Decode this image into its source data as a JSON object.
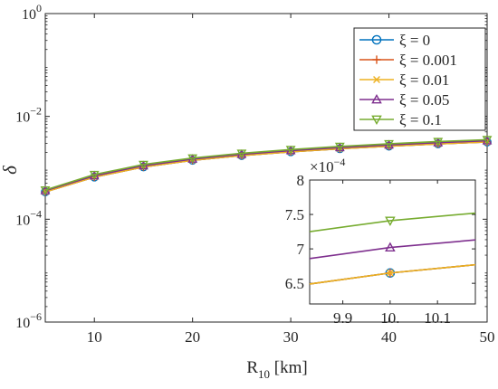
{
  "chart_data": [
    {
      "type": "line",
      "xlabel": "R",
      "xlabel_sub": "10",
      "xlabel_unit": " [km]",
      "ylabel": "δ",
      "xlim": [
        5,
        50
      ],
      "ylim": [
        1e-06,
        1
      ],
      "yscale": "log",
      "xticks": [
        10,
        20,
        30,
        40,
        50
      ],
      "yticks": [
        {
          "value": 1e-06,
          "base": "10",
          "exp": "−6"
        },
        {
          "value": 0.0001,
          "base": "10",
          "exp": "−4"
        },
        {
          "value": 0.01,
          "base": "10",
          "exp": "−2"
        },
        {
          "value": 1,
          "base": "10",
          "exp": "0"
        }
      ],
      "grid": false,
      "legend_position": "top-right",
      "x": [
        5,
        10,
        15,
        20,
        25,
        30,
        35,
        40,
        45,
        50
      ],
      "series": [
        {
          "name": "ξ = 0",
          "color": "#0072BD",
          "marker": "circle",
          "values": [
            0.00034,
            0.00066,
            0.00104,
            0.0014,
            0.00173,
            0.00205,
            0.00235,
            0.00264,
            0.00292,
            0.00318
          ]
        },
        {
          "name": "ξ = 0.001",
          "color": "#D95319",
          "marker": "plus",
          "values": [
            0.00034,
            0.00066,
            0.00104,
            0.0014,
            0.00173,
            0.00205,
            0.00235,
            0.00264,
            0.00292,
            0.00318
          ]
        },
        {
          "name": "ξ = 0.01",
          "color": "#EDB120",
          "marker": "x",
          "values": [
            0.00034,
            0.00066,
            0.00104,
            0.0014,
            0.00173,
            0.00205,
            0.00235,
            0.00264,
            0.00292,
            0.00318
          ]
        },
        {
          "name": "ξ = 0.05",
          "color": "#7E2F8E",
          "marker": "triangle-up",
          "values": [
            0.00036,
            0.0007,
            0.0011,
            0.00148,
            0.00183,
            0.00216,
            0.00248,
            0.00279,
            0.00308,
            0.00336
          ]
        },
        {
          "name": "ξ = 0.1",
          "color": "#77AC30",
          "marker": "triangle-down",
          "values": [
            0.00037,
            0.00074,
            0.00116,
            0.00155,
            0.00192,
            0.00227,
            0.00261,
            0.00293,
            0.00324,
            0.00353
          ]
        }
      ]
    },
    {
      "type": "line",
      "role": "inset",
      "xlim": [
        9.83,
        10.18
      ],
      "ylim": [
        6.2,
        8.0
      ],
      "xticks": [
        {
          "value": 9.9,
          "label": "9.9"
        },
        {
          "value": 10.0,
          "label": "10."
        },
        {
          "value": 10.1,
          "label": "10.1"
        }
      ],
      "yticks": [
        {
          "value": 6.5,
          "label": "6.5"
        },
        {
          "value": 7.0,
          "label": "7"
        },
        {
          "value": 7.5,
          "label": "7.5"
        },
        {
          "value": 8.0,
          "label": "8"
        }
      ],
      "y_multiplier_base": "×10",
      "y_multiplier_exp": "−4",
      "x": [
        9.83,
        10.0,
        10.18
      ],
      "series": [
        {
          "name": "ξ = 0",
          "color": "#0072BD",
          "marker": "circle",
          "values": [
            6.49,
            6.65,
            6.77
          ]
        },
        {
          "name": "ξ = 0.001",
          "color": "#D95319",
          "marker": "plus",
          "values": [
            6.49,
            6.65,
            6.77
          ]
        },
        {
          "name": "ξ = 0.01",
          "color": "#EDB120",
          "marker": "x",
          "values": [
            6.49,
            6.65,
            6.77
          ]
        },
        {
          "name": "ξ = 0.05",
          "color": "#7E2F8E",
          "marker": "triangle-up",
          "values": [
            6.86,
            7.02,
            7.13
          ]
        },
        {
          "name": "ξ = 0.1",
          "color": "#77AC30",
          "marker": "triangle-down",
          "values": [
            7.25,
            7.41,
            7.52
          ]
        }
      ]
    }
  ]
}
